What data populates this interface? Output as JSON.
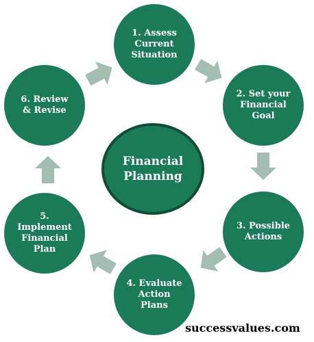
{
  "diagram": {
    "center_label": "Financial\nPlanning",
    "steps": [
      {
        "label": "1. Assess\nCurrent\nSituation"
      },
      {
        "label": "2. Set your\nFinancial\nGoal"
      },
      {
        "label": "3. Possible\nActions"
      },
      {
        "label": "4. Evaluate\nAction\nPlans"
      },
      {
        "label": "5.\nImplement\nFinancial\nPlan"
      },
      {
        "label": "6. Review\n& Revise"
      }
    ],
    "arrow_icon": "block-arrow-icon"
  },
  "footer": {
    "site": "successvalues.com"
  },
  "colors": {
    "node_fill": "#1b7a58",
    "center_border": "#0f4d34",
    "arrow_fill": "#a4bdb2",
    "background": "#ffffff"
  }
}
